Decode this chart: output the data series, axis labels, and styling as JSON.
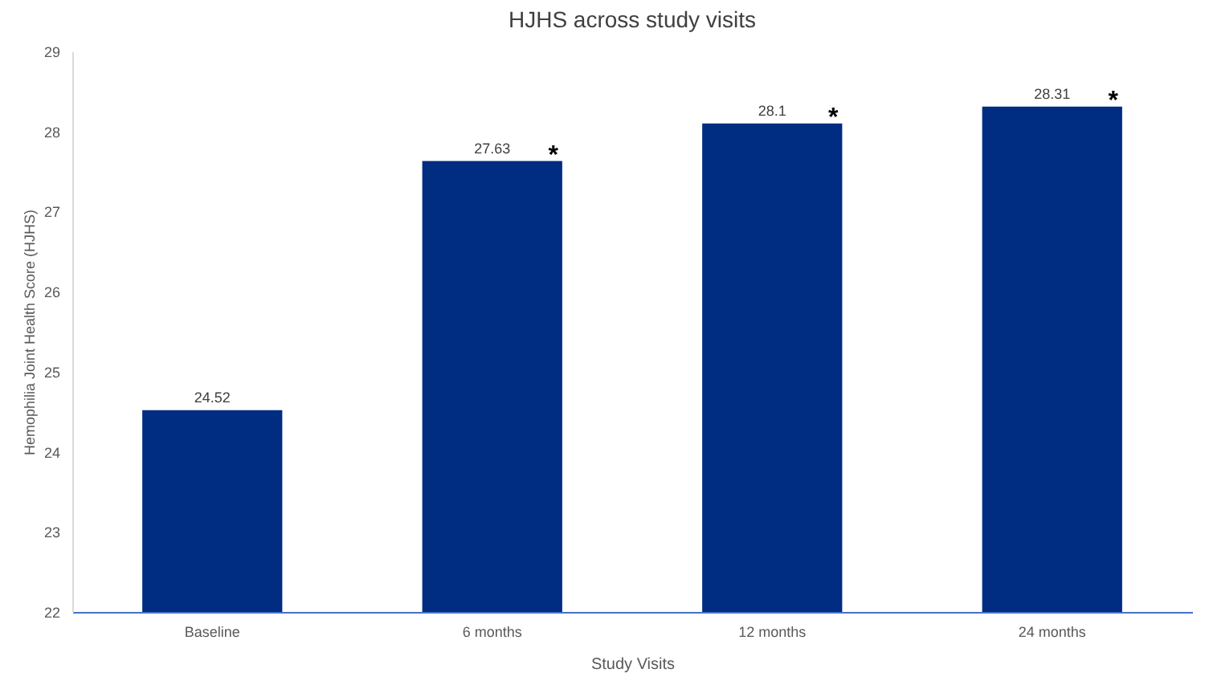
{
  "chart_data": {
    "type": "bar",
    "title": "HJHS across study visits",
    "xlabel": "Study Visits",
    "ylabel": "Hemophilia Joint Health Score (HJHS)",
    "categories": [
      "Baseline",
      "6 months",
      "12 months",
      "24 months"
    ],
    "values": [
      24.52,
      27.63,
      28.1,
      28.31
    ],
    "color": "#002c82",
    "ylim": [
      22,
      29
    ],
    "yticks": [
      22,
      23,
      24,
      25,
      26,
      27,
      28,
      29
    ],
    "data_labels": true,
    "annotations": [
      {
        "text": "*",
        "x": "6 months",
        "y": 27.63
      },
      {
        "text": "*",
        "x": "12 months",
        "y": 28.1
      },
      {
        "text": "*",
        "x": "24 months",
        "y": 28.31
      }
    ]
  }
}
